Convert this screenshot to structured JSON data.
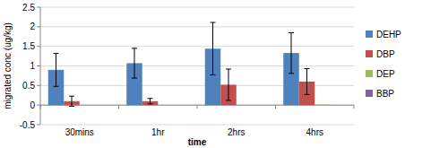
{
  "chart_data": {
    "type": "bar",
    "x_label": "time",
    "y_label": "migrated conc (ug/kg)",
    "categories": [
      "30mins",
      "1hr",
      "2hrs",
      "4hrs"
    ],
    "series": [
      {
        "name": "DEHP",
        "color": "#4f81bd",
        "values": [
          0.9,
          1.07,
          1.44,
          1.33
        ],
        "errors": [
          0.42,
          0.38,
          0.67,
          0.52
        ]
      },
      {
        "name": "DBP",
        "color": "#c0504d",
        "values": [
          0.1,
          0.1,
          0.52,
          0.6
        ],
        "errors": [
          0.13,
          0.07,
          0.4,
          0.33
        ]
      },
      {
        "name": "DEP",
        "color": "#9bbb59",
        "values": [
          0,
          0,
          0,
          0.01
        ],
        "errors": [
          0,
          0,
          0,
          0
        ]
      },
      {
        "name": "BBP",
        "color": "#8064a2",
        "values": [
          0,
          0,
          0,
          0
        ],
        "errors": [
          0,
          0,
          0,
          0
        ]
      }
    ],
    "ylim": [
      -0.5,
      2.5
    ],
    "yticks": [
      -0.5,
      0,
      0.5,
      1,
      1.5,
      2,
      2.5
    ],
    "grid": true,
    "legend": "right"
  }
}
